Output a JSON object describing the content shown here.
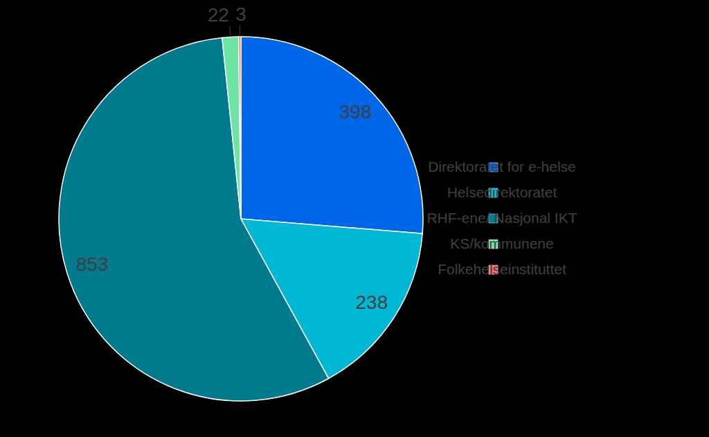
{
  "chart_data": {
    "type": "pie",
    "categories": [
      "Direktoratet for e-helse",
      "Helsedirektoratet",
      "RHF-ene/ Nasjonal IKT",
      "KS/kommunene",
      "Folkehelseinstituttet"
    ],
    "values": [
      398,
      238,
      853,
      22,
      3
    ],
    "colors": [
      "#0066e8",
      "#00b8d4",
      "#007a8c",
      "#6de3a4",
      "#ff6b6b"
    ],
    "data_labels": true,
    "legend": "right"
  }
}
